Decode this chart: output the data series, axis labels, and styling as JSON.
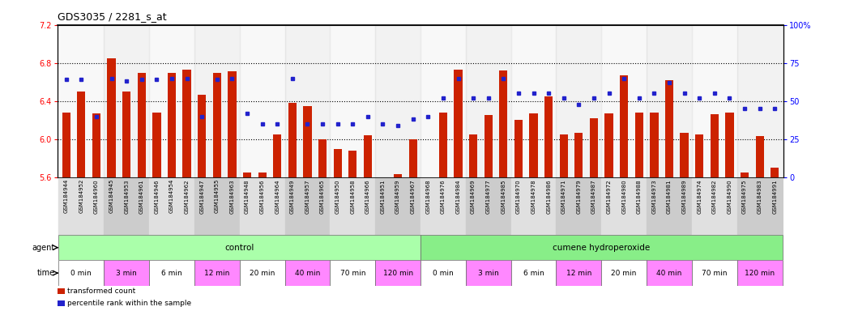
{
  "title": "GDS3035 / 2281_s_at",
  "sample_ids": [
    "GSM184944",
    "GSM184952",
    "GSM184960",
    "GSM184945",
    "GSM184953",
    "GSM184961",
    "GSM184946",
    "GSM184954",
    "GSM184962",
    "GSM184947",
    "GSM184955",
    "GSM184963",
    "GSM184948",
    "GSM184956",
    "GSM184964",
    "GSM184949",
    "GSM184957",
    "GSM184965",
    "GSM184950",
    "GSM184958",
    "GSM184966",
    "GSM184951",
    "GSM184959",
    "GSM184967",
    "GSM184968",
    "GSM184976",
    "GSM184984",
    "GSM184969",
    "GSM184977",
    "GSM184985",
    "GSM184970",
    "GSM184978",
    "GSM184986",
    "GSM184971",
    "GSM184979",
    "GSM184987",
    "GSM184972",
    "GSM184980",
    "GSM184988",
    "GSM184973",
    "GSM184981",
    "GSM184989",
    "GSM184974",
    "GSM184982",
    "GSM184990",
    "GSM184975",
    "GSM184983",
    "GSM184991"
  ],
  "bar_values": [
    6.28,
    6.5,
    6.27,
    6.85,
    6.5,
    6.7,
    6.28,
    6.7,
    6.73,
    6.47,
    6.7,
    6.71,
    5.65,
    5.65,
    6.05,
    6.38,
    6.35,
    6.0,
    5.9,
    5.88,
    6.04,
    5.6,
    5.63,
    6.0,
    5.6,
    6.28,
    6.73,
    6.05,
    6.25,
    6.72,
    6.2,
    6.27,
    6.45,
    6.05,
    6.07,
    6.22,
    6.27,
    6.67,
    6.28,
    6.28,
    6.62,
    6.07,
    6.05,
    6.26,
    6.28,
    5.65,
    6.03,
    5.7
  ],
  "percentile_values": [
    64,
    64,
    40,
    65,
    63,
    64,
    64,
    65,
    65,
    40,
    64,
    65,
    42,
    35,
    35,
    65,
    35,
    35,
    35,
    35,
    40,
    35,
    34,
    38,
    40,
    52,
    65,
    52,
    52,
    65,
    55,
    55,
    55,
    52,
    48,
    52,
    55,
    65,
    52,
    55,
    62,
    55,
    52,
    55,
    52,
    45,
    45,
    45
  ],
  "bar_bottom": 5.6,
  "ylim_left": [
    5.6,
    7.2
  ],
  "ylim_right": [
    0,
    100
  ],
  "yticks_left": [
    5.6,
    6.0,
    6.4,
    6.8,
    7.2
  ],
  "yticks_right": [
    0,
    25,
    50,
    75,
    100
  ],
  "bar_color": "#cc2200",
  "dot_color": "#2222cc",
  "hline_values": [
    6.0,
    6.4,
    6.8
  ],
  "control_color": "#aaffaa",
  "chp_color": "#88ee88",
  "time_alt_color": "#ff88ff",
  "time_base_color": "#ffffff",
  "time_groups": [
    {
      "label": "0 min",
      "start": 0,
      "end": 3
    },
    {
      "label": "3 min",
      "start": 3,
      "end": 6
    },
    {
      "label": "6 min",
      "start": 6,
      "end": 9
    },
    {
      "label": "12 min",
      "start": 9,
      "end": 12
    },
    {
      "label": "20 min",
      "start": 12,
      "end": 15
    },
    {
      "label": "40 min",
      "start": 15,
      "end": 18
    },
    {
      "label": "70 min",
      "start": 18,
      "end": 21
    },
    {
      "label": "120 min",
      "start": 21,
      "end": 24
    },
    {
      "label": "0 min",
      "start": 24,
      "end": 27
    },
    {
      "label": "3 min",
      "start": 27,
      "end": 30
    },
    {
      "label": "6 min",
      "start": 30,
      "end": 33
    },
    {
      "label": "12 min",
      "start": 33,
      "end": 36
    },
    {
      "label": "20 min",
      "start": 36,
      "end": 39
    },
    {
      "label": "40 min",
      "start": 39,
      "end": 42
    },
    {
      "label": "70 min",
      "start": 42,
      "end": 45
    },
    {
      "label": "120 min",
      "start": 45,
      "end": 48
    }
  ],
  "legend_items": [
    {
      "label": "transformed count",
      "color": "#cc2200"
    },
    {
      "label": "percentile rank within the sample",
      "color": "#2222cc"
    }
  ],
  "title_fontsize": 9,
  "xlabel_fontsize": 5,
  "ylabel_fontsize": 7
}
